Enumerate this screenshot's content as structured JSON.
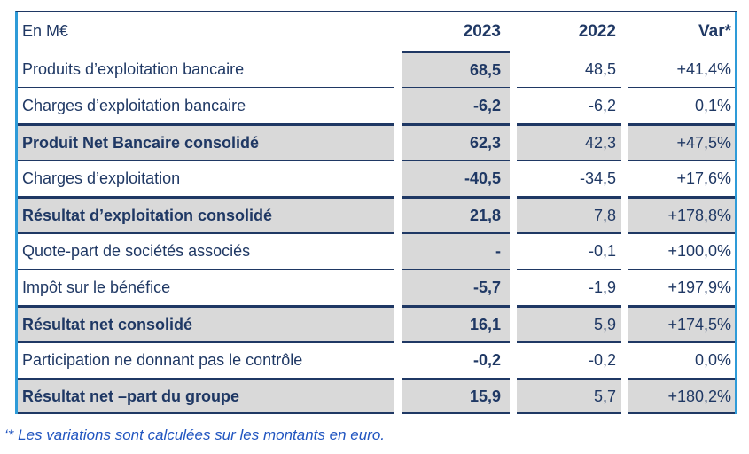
{
  "colors": {
    "text_navy": "#1F3864",
    "shade_gray": "#D9D9D9",
    "side_border_blue": "#2E9BD8",
    "footnote_blue": "#2155C0"
  },
  "table": {
    "header": {
      "unit_label": "En M€",
      "col_2023": "2023",
      "col_2022": "2022",
      "col_var": "Var*"
    },
    "rows": [
      {
        "label": "Produits d’exploitation bancaire",
        "v2023": "68,5",
        "v2022": "48,5",
        "var": "+41,4%",
        "bold": false,
        "shading": "col2023"
      },
      {
        "label": "Charges d’exploitation bancaire",
        "v2023": "-6,2",
        "v2022": "-6,2",
        "var": "0,1%",
        "bold": false,
        "shading": "col2023"
      },
      {
        "label": "Produit Net Bancaire consolidé",
        "v2023": "62,3",
        "v2022": "42,3",
        "var": "+47,5%",
        "bold": true,
        "shading": "full"
      },
      {
        "label": "Charges d’exploitation",
        "v2023": "-40,5",
        "v2022": "-34,5",
        "var": "+17,6%",
        "bold": false,
        "shading": "col2023"
      },
      {
        "label": "Résultat d’exploitation consolidé",
        "v2023": "21,8",
        "v2022": "7,8",
        "var": "+178,8%",
        "bold": true,
        "shading": "full"
      },
      {
        "label": "Quote-part de sociétés associés",
        "v2023": "-",
        "v2022": "-0,1",
        "var": "+100,0%",
        "bold": false,
        "shading": "col2023"
      },
      {
        "label": "Impôt sur le bénéfice",
        "v2023": "-5,7",
        "v2022": "-1,9",
        "var": "+197,9%",
        "bold": false,
        "shading": "col2023"
      },
      {
        "label": "Résultat net consolidé",
        "v2023": "16,1",
        "v2022": "5,9",
        "var": "+174,5%",
        "bold": true,
        "shading": "full"
      },
      {
        "label": "Participation ne donnant pas le contrôle",
        "v2023": "-0,2",
        "v2022": "-0,2",
        "var": "0,0%",
        "bold": false,
        "shading": "none"
      },
      {
        "label": "Résultat net –part du groupe",
        "v2023": "15,9",
        "v2022": "5,7",
        "var": "+180,2%",
        "bold": true,
        "shading": "full"
      }
    ]
  },
  "footnote": "‘* Les variations sont calculées sur les montants en euro."
}
